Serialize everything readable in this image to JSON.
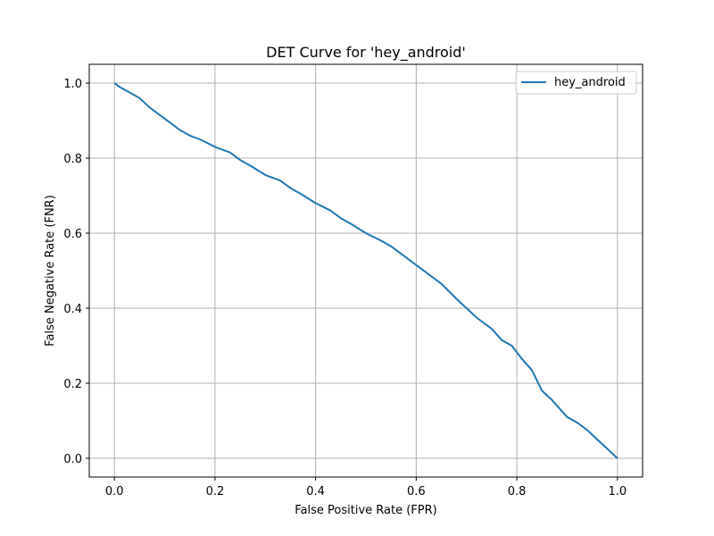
{
  "chart_data": {
    "type": "line",
    "title": "DET Curve for 'hey_android'",
    "xlabel": "False Positive Rate (FPR)",
    "ylabel": "False Negative Rate (FNR)",
    "xlim": [
      -0.05,
      1.05
    ],
    "ylim": [
      -0.05,
      1.05
    ],
    "xticks": [
      0.0,
      0.2,
      0.4,
      0.6,
      0.8,
      1.0
    ],
    "xtick_labels": [
      "0.0",
      "0.2",
      "0.4",
      "0.6",
      "0.8",
      "1.0"
    ],
    "yticks": [
      0.0,
      0.2,
      0.4,
      0.6,
      0.8,
      1.0
    ],
    "ytick_labels": [
      "0.0",
      "0.2",
      "0.4",
      "0.6",
      "0.8",
      "1.0"
    ],
    "grid": true,
    "legend_position": "top-right",
    "series": [
      {
        "name": "hey_android",
        "color": "#1f77b4",
        "x": [
          0.0,
          0.01,
          0.03,
          0.05,
          0.07,
          0.09,
          0.11,
          0.13,
          0.15,
          0.17,
          0.2,
          0.23,
          0.25,
          0.27,
          0.3,
          0.33,
          0.35,
          0.37,
          0.4,
          0.43,
          0.45,
          0.47,
          0.5,
          0.53,
          0.55,
          0.58,
          0.6,
          0.62,
          0.65,
          0.68,
          0.7,
          0.72,
          0.75,
          0.77,
          0.79,
          0.81,
          0.83,
          0.85,
          0.87,
          0.9,
          0.92,
          0.94,
          0.96,
          0.98,
          1.0
        ],
        "y": [
          1.0,
          0.99,
          0.975,
          0.96,
          0.935,
          0.915,
          0.895,
          0.875,
          0.86,
          0.85,
          0.83,
          0.815,
          0.795,
          0.78,
          0.755,
          0.74,
          0.72,
          0.705,
          0.68,
          0.66,
          0.64,
          0.625,
          0.6,
          0.58,
          0.565,
          0.535,
          0.515,
          0.495,
          0.465,
          0.425,
          0.4,
          0.375,
          0.345,
          0.315,
          0.3,
          0.265,
          0.235,
          0.18,
          0.155,
          0.11,
          0.095,
          0.075,
          0.05,
          0.025,
          0.0
        ]
      }
    ]
  }
}
